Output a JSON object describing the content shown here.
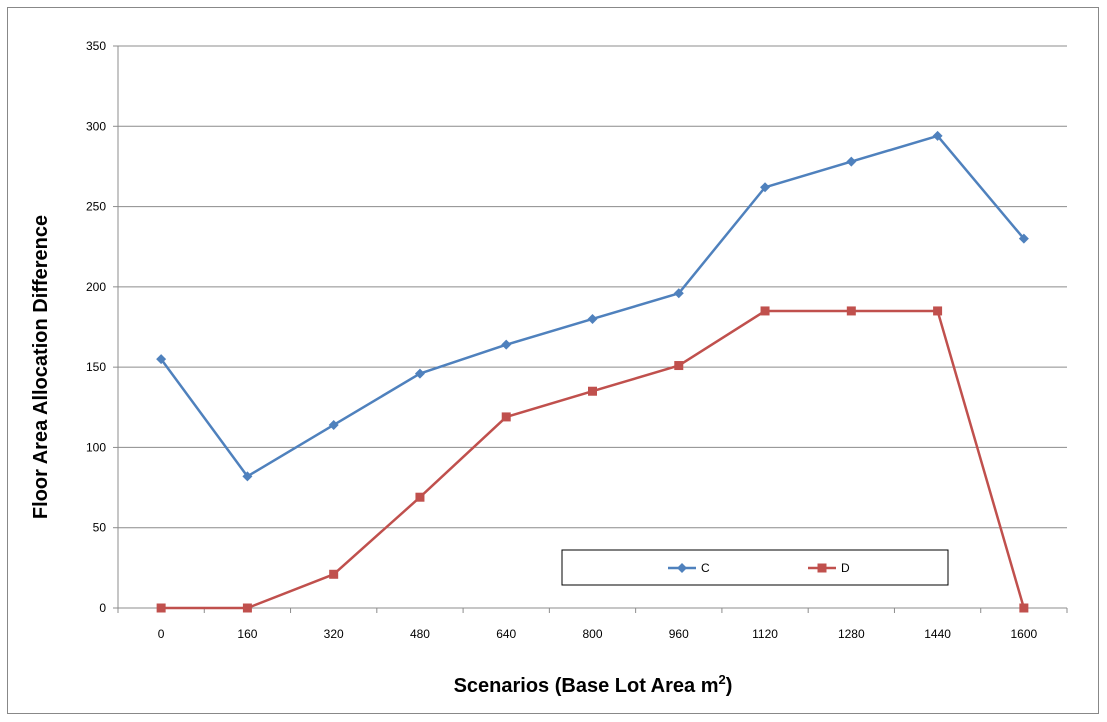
{
  "chart_data": {
    "type": "line",
    "title": "",
    "xlabel": "Scenarios (Base Lot Area m",
    "xlabel_sup": "2",
    "xlabel_suffix": ")",
    "ylabel": "Floor Area Allocation Difference",
    "categories": [
      "0",
      "160",
      "320",
      "480",
      "640",
      "800",
      "960",
      "1120",
      "1280",
      "1440",
      "1600"
    ],
    "ylim": [
      0,
      350
    ],
    "yticks": [
      0,
      50,
      100,
      150,
      200,
      250,
      300,
      350
    ],
    "grid": true,
    "legend_position": "bottom-right",
    "series": [
      {
        "name": "C",
        "color": "#4F81BD",
        "marker": "diamond",
        "values": [
          155,
          82,
          114,
          146,
          164,
          180,
          196,
          262,
          278,
          294,
          230
        ]
      },
      {
        "name": "D",
        "color": "#C0504D",
        "marker": "square",
        "values": [
          0,
          0,
          21,
          69,
          119,
          135,
          151,
          185,
          185,
          185,
          0
        ]
      }
    ]
  }
}
